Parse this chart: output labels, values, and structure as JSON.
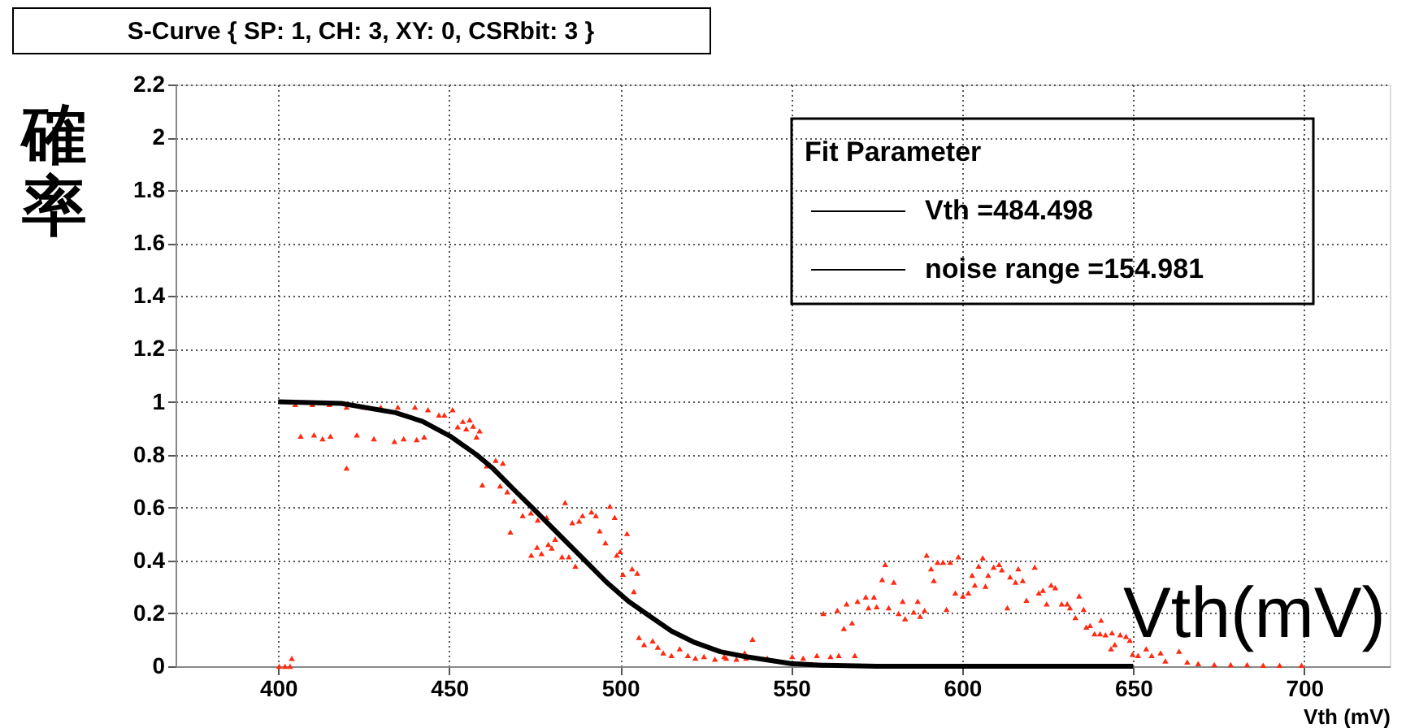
{
  "chart_data": {
    "type": "scatter",
    "title": "S-Curve { SP: 1, CH: 3, XY: 0, CSRbit: 3 }",
    "xlabel": "Vth (mV)",
    "ylabel": "確率",
    "legend_title": "Fit Parameter",
    "annotations": [
      "Vth =484.498",
      "noise range =154.981",
      "Vth(mV)"
    ],
    "xlim": [
      370,
      725
    ],
    "xticks": [
      400,
      450,
      500,
      550,
      600,
      650,
      700
    ],
    "ylim": [
      0,
      2.2
    ],
    "yticks": [
      0,
      0.2,
      0.4,
      0.6,
      0.8,
      1,
      1.2,
      1.4,
      1.6,
      1.8,
      2,
      2.2
    ],
    "grid": true,
    "series": [
      {
        "marker": "triangle",
        "color": "#ff2a10",
        "x": [
          400.3,
          402,
          403.5,
          404,
          405,
          410,
          415,
          420,
          425,
          430,
          435,
          440,
          443.8,
          447,
          451,
          448.6,
          406.6,
          410.5,
          413,
          415.3,
          423,
          428,
          434,
          436.7,
          440.5,
          442.7,
          420,
          452.5,
          454,
          456,
          455,
          457,
          458.9,
          458,
          461,
          463.6,
          465.7,
          459.7,
          464.9,
          467,
          469,
          467.9,
          471.5,
          473.9,
          475.9,
          478.5,
          474,
          475.7,
          477,
          479,
          480,
          481,
          483,
          483.9,
          485,
          486,
          488,
          486.9,
          489,
          491.6,
          492.9,
          494,
          495.7,
          497,
          498.4,
          499,
          500,
          500.8,
          502,
          503.5,
          505,
          504,
          505.5,
          507,
          509.5,
          511,
          512.6,
          515,
          517.4,
          519.8,
          522,
          524.5,
          527.7,
          531,
          534,
          536.4,
          538.7,
          530.4,
          536.8,
          543,
          550.3,
          553.5,
          557.5,
          561.5,
          563.9,
          568.6,
          559.4,
          563.5,
          565.4,
          566.2,
          567.8,
          569.4,
          571.8,
          574.2,
          572.6,
          575,
          576.6,
          577.5,
          578.5,
          580,
          581.4,
          582.6,
          583.3,
          585.8,
          587,
          587.7,
          589,
          589.6,
          590.9,
          591.7,
          592.8,
          594.4,
          596.5,
          595.4,
          598.9,
          598,
          600.2,
          601.8,
          602.9,
          603.7,
          604.8,
          606,
          606.8,
          607.6,
          609.2,
          610.8,
          611.6,
          613.2,
          614,
          615.6,
          616.4,
          617.7,
          618.8,
          621.2,
          622.4,
          623.6,
          624.7,
          626,
          627.2,
          629.1,
          630.7,
          631.5,
          634.2,
          633.1,
          635.5,
          636.3,
          637.4,
          638.7,
          640.3,
          641.9,
          640.6,
          643.8,
          644.6,
          646.2,
          647.9,
          649,
          643.5,
          649.8,
          651.4,
          653.8,
          655.4,
          658,
          659.4,
          663.4,
          665.8,
          669,
          673.7,
          678.5,
          683.3,
          688,
          692.8,
          699.2
        ],
        "values": [
          0,
          0,
          0,
          0.03,
          0.99,
          0.99,
          0.99,
          0.98,
          0.98,
          0.98,
          0.98,
          0.98,
          0.97,
          0.95,
          0.97,
          0.95,
          0.87,
          0.875,
          0.86,
          0.87,
          0.875,
          0.86,
          0.85,
          0.86,
          0.857,
          0.867,
          0.75,
          0.906,
          0.926,
          0.932,
          0.898,
          0.908,
          0.89,
          0.867,
          0.758,
          0.779,
          0.768,
          0.686,
          0.682,
          0.66,
          0.625,
          0.508,
          0.57,
          0.58,
          0.553,
          0.563,
          0.42,
          0.45,
          0.426,
          0.461,
          0.447,
          0.48,
          0.414,
          0.619,
          0.414,
          0.543,
          0.549,
          0.379,
          0.57,
          0.584,
          0.57,
          0.512,
          0.467,
          0.605,
          0.563,
          0.42,
          0.434,
          0.348,
          0.502,
          0.369,
          0.352,
          0.283,
          0.109,
          0.082,
          0.096,
          0.072,
          0.051,
          0.041,
          0.066,
          0.041,
          0.031,
          0.037,
          0.027,
          0.031,
          0.027,
          0.051,
          0.102,
          0.037,
          0.031,
          0.031,
          0.037,
          0.031,
          0.041,
          0.037,
          0.041,
          0.041,
          0.2,
          0.211,
          0.143,
          0.236,
          0.164,
          0.246,
          0.262,
          0.262,
          0.221,
          0.225,
          0.328,
          0.385,
          0.221,
          0.318,
          0.2,
          0.246,
          0.18,
          0.205,
          0.246,
          0.189,
          0.211,
          0.42,
          0.369,
          0.324,
          0.393,
          0.393,
          0.393,
          0.215,
          0.414,
          0.277,
          0.266,
          0.277,
          0.344,
          0.307,
          0.379,
          0.41,
          0.303,
          0.344,
          0.375,
          0.385,
          0.365,
          0.221,
          0.338,
          0.318,
          0.369,
          0.324,
          0.25,
          0.375,
          0.277,
          0.287,
          0.236,
          0.307,
          0.297,
          0.236,
          0.236,
          0.221,
          0.266,
          0.184,
          0.215,
          0.148,
          0.154,
          0.123,
          0.123,
          0.119,
          0.174,
          0.127,
          0.082,
          0.119,
          0.113,
          0.098,
          0.066,
          0.045,
          0.041,
          0.066,
          0.041,
          0.051,
          0.02,
          0.057,
          0.016,
          0.01,
          0.006,
          0.006,
          0.006,
          0.004,
          0.004,
          0.004
        ]
      },
      {
        "type": "line",
        "color": "#000000",
        "x": [
          400,
          418.5,
          434.3,
          442.2,
          450.2,
          458,
          462.8,
          469.1,
          475.5,
          481.8,
          489.7,
          496,
          502.4,
          508.7,
          515,
          521.4,
          529.3,
          536.4,
          550,
          559,
          575,
          650
        ],
        "values": [
          1.0,
          0.994,
          0.959,
          0.926,
          0.871,
          0.8,
          0.748,
          0.666,
          0.584,
          0.502,
          0.4,
          0.318,
          0.246,
          0.189,
          0.133,
          0.092,
          0.055,
          0.037,
          0.01,
          0.004,
          0,
          0
        ]
      }
    ]
  }
}
